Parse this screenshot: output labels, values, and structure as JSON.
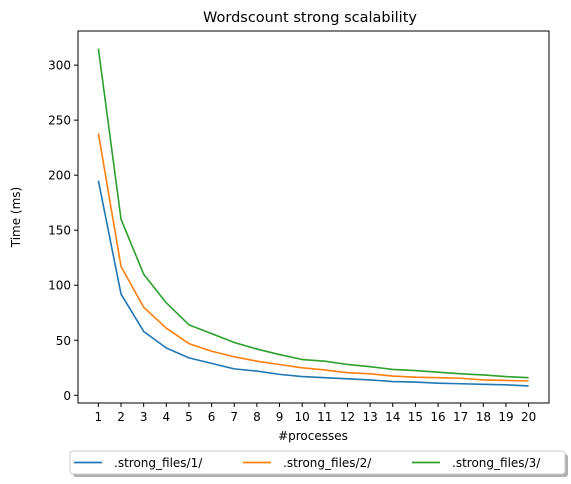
{
  "chart_data": {
    "type": "line",
    "title": "Wordscount strong scalability",
    "xlabel": "#processes",
    "ylabel": "Time (ms)",
    "x": [
      1,
      2,
      3,
      4,
      5,
      6,
      7,
      8,
      9,
      10,
      11,
      12,
      13,
      14,
      15,
      16,
      17,
      18,
      19,
      20
    ],
    "xlim": [
      0.1,
      20.9
    ],
    "ylim": [
      -7,
      331
    ],
    "yticks": [
      0,
      50,
      100,
      150,
      200,
      250,
      300
    ],
    "grid": false,
    "legend": "bottom-center",
    "series": [
      {
        "name": ".strong_files/1/",
        "color": "#1f77b4",
        "values": [
          195,
          92,
          58,
          43,
          34,
          29,
          24,
          22,
          19,
          17,
          16,
          15,
          14,
          12.5,
          12,
          11,
          10.5,
          10,
          9.5,
          8.5
        ]
      },
      {
        "name": ".strong_files/2/",
        "color": "#ff7f0e",
        "values": [
          238,
          117,
          80,
          61,
          47,
          40,
          35,
          31,
          28,
          25,
          23,
          20.5,
          19.5,
          17.5,
          16.5,
          16,
          15.5,
          14,
          13.5,
          13
        ]
      },
      {
        "name": ".strong_files/3/",
        "color": "#2ca02c",
        "values": [
          315,
          160,
          110,
          84,
          64,
          56,
          48,
          42,
          37,
          32.5,
          31,
          28,
          26,
          23.5,
          22.5,
          21,
          19.5,
          18.5,
          17,
          16
        ]
      }
    ]
  }
}
